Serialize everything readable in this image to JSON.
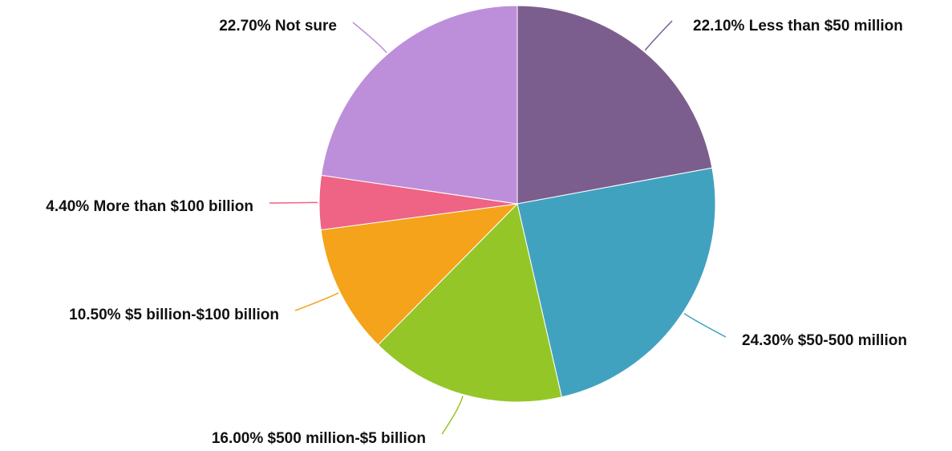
{
  "chart_data": {
    "type": "pie",
    "title": "",
    "slices": [
      {
        "label": "Less than $50 million",
        "value": 22.1,
        "display": "22.10% Less than $50 million",
        "color": "#7b5e8e"
      },
      {
        "label": "$50-500 million",
        "value": 24.3,
        "display": "24.30% $50-500 million",
        "color": "#41a2c0"
      },
      {
        "label": "$500 million-$5 billion",
        "value": 16.0,
        "display": "16.00% $500 million-$5 billion",
        "color": "#94c627"
      },
      {
        "label": "$5 billion-$100 billion",
        "value": 10.5,
        "display": "10.50% $5 billion-$100 billion",
        "color": "#f4a31a"
      },
      {
        "label": "More than $100 billion",
        "value": 4.4,
        "display": "4.40% More than $100 billion",
        "color": "#ef6384"
      },
      {
        "label": "Not sure",
        "value": 22.7,
        "display": "22.70% Not sure",
        "color": "#bd8fda"
      }
    ]
  }
}
